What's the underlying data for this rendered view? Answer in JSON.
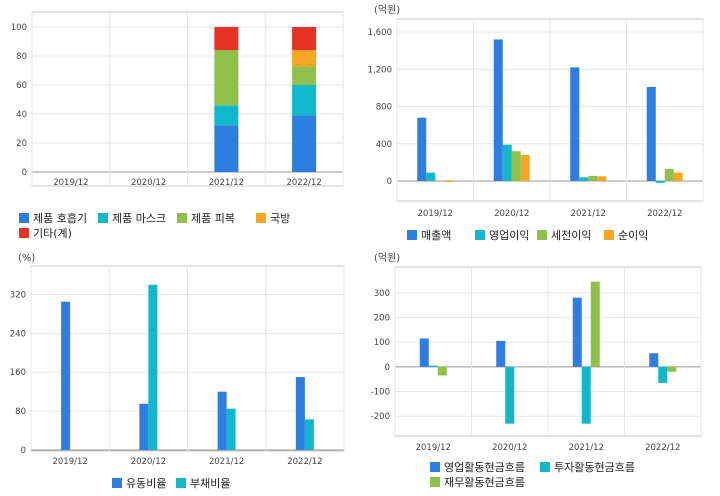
{
  "colors": {
    "blue": "#2e7de1",
    "teal": "#11b8cc",
    "green": "#8fc04a",
    "orange": "#f6a623",
    "red": "#e53323"
  },
  "chart_data": [
    {
      "id": "product-mix",
      "type": "bar",
      "stacked": true,
      "unit_label": "",
      "categories": [
        "2019/12",
        "2020/12",
        "2021/12",
        "2022/12"
      ],
      "ylim": [
        0,
        100
      ],
      "yticks": [
        0,
        20,
        40,
        60,
        80,
        100
      ],
      "grid": true,
      "legend_position": "bottom",
      "series": [
        {
          "name": "제품 호흡기",
          "color": "#2e7de1",
          "values": [
            null,
            null,
            32,
            39
          ]
        },
        {
          "name": "제품 마스크",
          "color": "#11b8cc",
          "values": [
            null,
            null,
            14,
            21
          ]
        },
        {
          "name": "제품 피복",
          "color": "#8fc04a",
          "values": [
            null,
            null,
            38,
            13
          ]
        },
        {
          "name": "국방",
          "color": "#f6a623",
          "values": [
            null,
            null,
            0,
            11
          ]
        },
        {
          "name": "기타(계)",
          "color": "#e53323",
          "values": [
            null,
            null,
            16,
            16
          ]
        }
      ]
    },
    {
      "id": "income",
      "type": "bar",
      "stacked": false,
      "unit_label": "(억원)",
      "categories": [
        "2019/12",
        "2020/12",
        "2021/12",
        "2022/12"
      ],
      "ylim": [
        0,
        1600
      ],
      "yticks": [
        0,
        400,
        800,
        1200,
        1600
      ],
      "ytick_labels": [
        "0",
        "400",
        "800",
        "1,200",
        "1,600"
      ],
      "grid": true,
      "legend_position": "bottom",
      "series": [
        {
          "name": "매출액",
          "color": "#2e7de1",
          "values": [
            680,
            1520,
            1220,
            1010
          ]
        },
        {
          "name": "영업이익",
          "color": "#11b8cc",
          "values": [
            90,
            390,
            40,
            -20
          ]
        },
        {
          "name": "세전이익",
          "color": "#8fc04a",
          "values": [
            0,
            320,
            55,
            130
          ]
        },
        {
          "name": "순이익",
          "color": "#f6a623",
          "values": [
            -10,
            280,
            50,
            90
          ]
        }
      ]
    },
    {
      "id": "ratios",
      "type": "bar",
      "stacked": false,
      "unit_label": "(%)",
      "categories": [
        "2019/12",
        "2020/12",
        "2021/12",
        "2022/12"
      ],
      "ylim": [
        0,
        360
      ],
      "yticks": [
        0,
        80,
        160,
        240,
        320
      ],
      "grid": true,
      "legend_position": "bottom",
      "series": [
        {
          "name": "유동비율",
          "color": "#2e7de1",
          "values": [
            305,
            95,
            120,
            150
          ]
        },
        {
          "name": "부채비율",
          "color": "#11b8cc",
          "values": [
            null,
            340,
            85,
            63
          ]
        }
      ]
    },
    {
      "id": "cashflow",
      "type": "bar",
      "stacked": false,
      "unit_label": "(억원)",
      "categories": [
        "2019/12",
        "2020/12",
        "2021/12",
        "2022/12"
      ],
      "ylim": [
        -280,
        380
      ],
      "yticks": [
        -200,
        -100,
        0,
        100,
        200,
        300
      ],
      "grid": true,
      "legend_position": "bottom",
      "series": [
        {
          "name": "영업활동현금흐름",
          "color": "#2e7de1",
          "values": [
            115,
            105,
            280,
            55
          ]
        },
        {
          "name": "투자활동현금흐름",
          "color": "#11b8cc",
          "values": [
            5,
            -230,
            -230,
            -65
          ]
        },
        {
          "name": "재무활동현금흐름",
          "color": "#8fc04a",
          "values": [
            -35,
            0,
            345,
            -20
          ]
        }
      ]
    }
  ]
}
